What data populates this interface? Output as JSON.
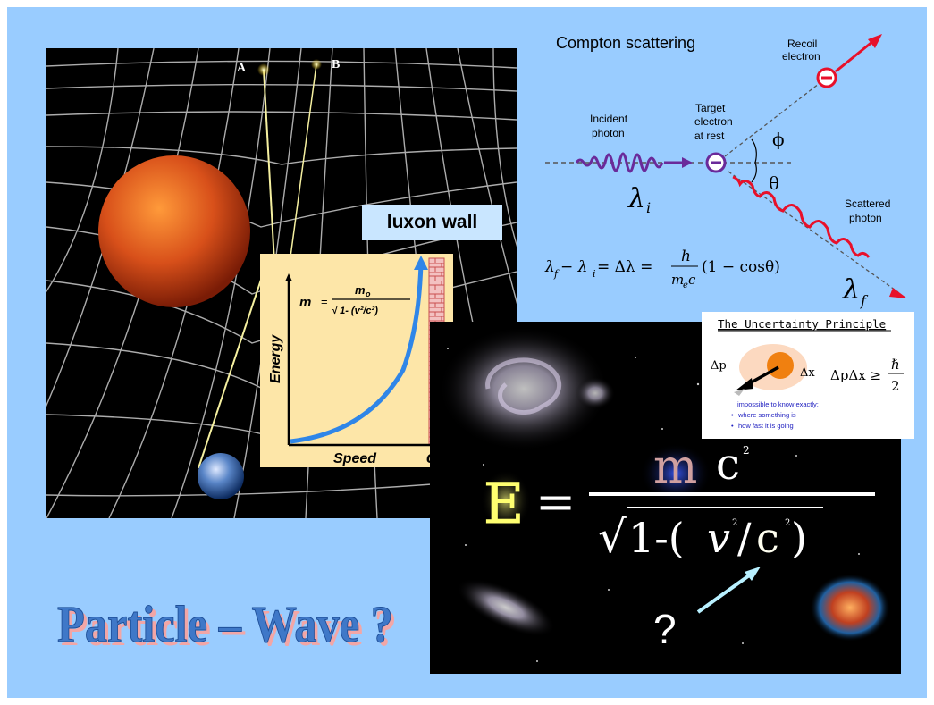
{
  "colors": {
    "background": "#99ccff",
    "title_fill": "#3f78c8",
    "title_side": "#f2a6a6",
    "curve": "#2f86e8",
    "wall": "#c85050",
    "photon_incident": "#6a2a9a",
    "photon_scattered": "#e8102a",
    "electron": "#e8102a"
  },
  "spacetime": {
    "label_a": "A",
    "label_b": "B"
  },
  "luxon_wall": {
    "label": "luxon wall"
  },
  "energy_graph": {
    "y_axis_label": "Energy",
    "x_axis_label": "Speed",
    "x_axis_end_label": "c",
    "formula_lhs": "m",
    "formula_eq": "=",
    "formula_num": "m",
    "formula_num_sub": "o",
    "formula_den": "√ 1- (v²/c²)"
  },
  "compton": {
    "title": "Compton scattering",
    "recoil_label_1": "Recoil",
    "recoil_label_2": "electron",
    "incident_label_1": "Incident",
    "incident_label_2": "photon",
    "target_label_1": "Target",
    "target_label_2": "electron",
    "target_label_3": "at rest",
    "phi": "ϕ",
    "theta": "θ",
    "scattered_label_1": "Scattered",
    "scattered_label_2": "photon",
    "lambda": "λ",
    "sub_i": "i",
    "sub_f": "f",
    "equation_left": "λ",
    "equation_mid": " − λ",
    "equation_rest": " = Δλ = ",
    "equation_num": "h",
    "equation_den": "m",
    "equation_den_sub": "e",
    "equation_den_c": "c",
    "equation_tail": "(1 − cosθ)"
  },
  "uncertainty": {
    "title": "The Uncertainty Principle",
    "dp": "Δp",
    "dx": "Δx",
    "formula": "ΔpΔx ≥",
    "hbar": "ℏ",
    "two": "2",
    "caption": "impossible to know exactly:",
    "bullet_1": "where something is",
    "bullet_2": "how fast it is going"
  },
  "cosmos": {
    "E": "E",
    "equals": "=",
    "m": "m",
    "c_top": "c",
    "exp_top": "2",
    "root": "√",
    "one_minus": "1-(",
    "v": "v",
    "exp_v": "2",
    "slash": "/",
    "c_bottom": "c",
    "exp_c": "2",
    "close": ")",
    "question": "?"
  },
  "title": {
    "text": "Particle – Wave ?"
  }
}
